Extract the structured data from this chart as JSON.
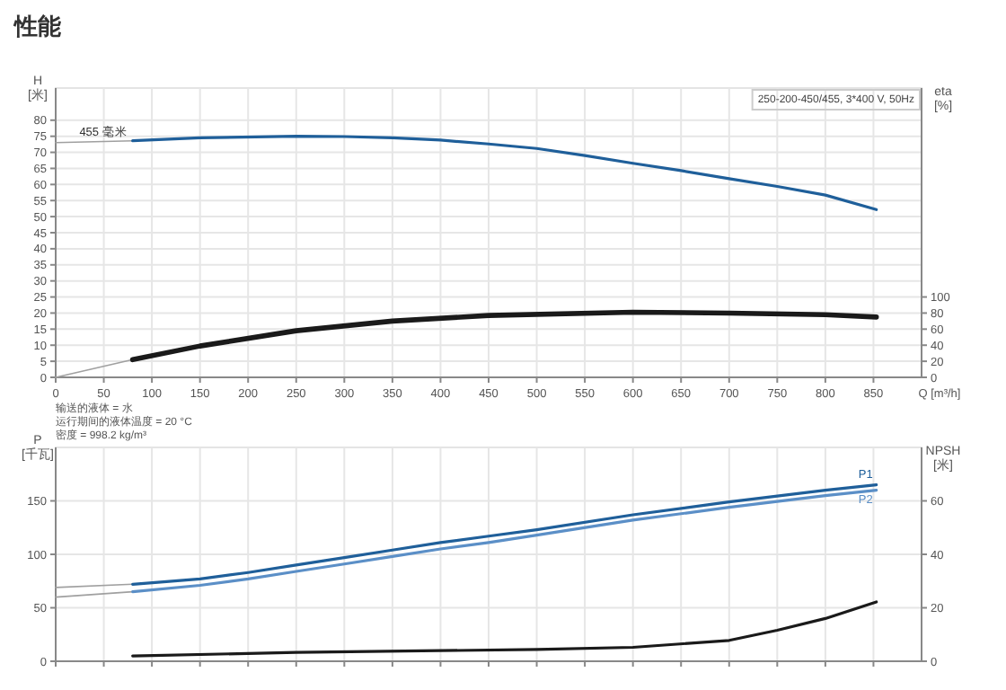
{
  "chart_data": [
    {
      "type": "line",
      "title": "性能",
      "xlabel": "Q [m³/h]",
      "ylabel": "H [米]",
      "y2label": "eta [%]",
      "xlim": [
        0,
        900
      ],
      "xticks": [
        0,
        50,
        100,
        150,
        200,
        250,
        300,
        350,
        400,
        450,
        500,
        550,
        600,
        650,
        700,
        750,
        800,
        850
      ],
      "ylim": [
        0,
        90
      ],
      "yticks": [
        0,
        5,
        10,
        15,
        20,
        25,
        30,
        35,
        40,
        45,
        50,
        55,
        60,
        65,
        70,
        75,
        80
      ],
      "y2lim": [
        0,
        360
      ],
      "y2ticks": [
        0,
        20,
        40,
        60,
        80,
        100
      ],
      "grid": true,
      "series": [
        {
          "color": "#a0a0a0",
          "x": [
            0,
            80
          ],
          "values": [
            73,
            73.6
          ]
        },
        {
          "name": "455 毫米",
          "color": "#1f5f9a",
          "x": [
            80,
            150,
            250,
            300,
            350,
            400,
            450,
            500,
            550,
            600,
            650,
            700,
            750,
            800,
            853
          ],
          "values": [
            73.6,
            74.5,
            75,
            74.9,
            74.5,
            73.8,
            72.6,
            71.2,
            69,
            66.6,
            64.3,
            61.8,
            59.4,
            56.7,
            52.2
          ]
        },
        {
          "color": "#a0a0a0",
          "axis": "y2",
          "x": [
            0,
            80
          ],
          "values": [
            0,
            22
          ]
        },
        {
          "color": "#1a1a1a",
          "axis": "y2",
          "x": [
            80,
            150,
            250,
            350,
            450,
            600,
            700,
            800,
            853
          ],
          "values": [
            22,
            39,
            58,
            70,
            77,
            81,
            80,
            78,
            75
          ]
        }
      ],
      "annotations": [
        "250-200-450/455, 3*400 V, 50Hz",
        "输送的液体 = 水",
        "运行期间的液体温度 = 20 °C",
        "密度 = 998.2 kg/m³"
      ]
    },
    {
      "type": "line",
      "ylabel": "P [千瓦]",
      "y2label": "NPSH [米]",
      "tick_labels": "y",
      "xlim": [
        0,
        900
      ],
      "xticks": [
        0,
        50,
        100,
        150,
        200,
        250,
        300,
        350,
        400,
        450,
        500,
        550,
        600,
        650,
        700,
        750,
        800,
        850
      ],
      "ylim": [
        0,
        200
      ],
      "yticks": [
        0,
        50,
        100,
        150
      ],
      "y2lim": [
        0,
        80
      ],
      "y2ticks": [
        0,
        20,
        40,
        60
      ],
      "grid": true,
      "series": [
        {
          "color": "#a0a0a0",
          "x": [
            0,
            80
          ],
          "values": [
            69,
            72
          ]
        },
        {
          "color": "#a0a0a0",
          "x": [
            0,
            80
          ],
          "values": [
            60,
            65
          ]
        },
        {
          "name": "P1",
          "color": "#1f5f9a",
          "x": [
            80,
            150,
            200,
            250,
            300,
            350,
            400,
            450,
            500,
            600,
            700,
            800,
            853
          ],
          "values": [
            72,
            77,
            83,
            90,
            97,
            104,
            111,
            117,
            123,
            137,
            149,
            160,
            165
          ]
        },
        {
          "name": "P2",
          "color": "#5b8fc7",
          "x": [
            80,
            150,
            200,
            250,
            300,
            350,
            400,
            450,
            500,
            600,
            700,
            800,
            853
          ],
          "values": [
            65,
            71,
            77,
            84,
            91,
            98,
            105,
            111,
            118,
            132,
            144,
            155,
            160
          ]
        },
        {
          "color": "#1a1a1a",
          "axis": "y2",
          "x": [
            80,
            250,
            500,
            600,
            700,
            750,
            800,
            853
          ],
          "values": [
            2,
            3.3,
            4.4,
            5.2,
            7.8,
            11.6,
            16,
            22.2
          ]
        }
      ]
    }
  ]
}
